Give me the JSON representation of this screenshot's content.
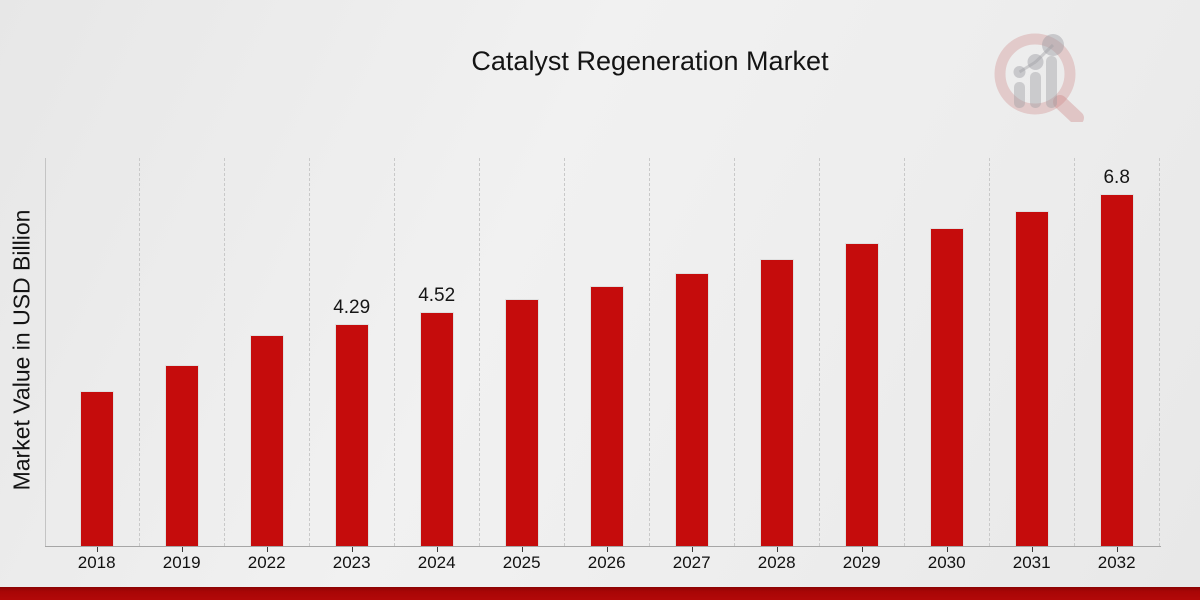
{
  "title": "Catalyst Regeneration Market",
  "y_axis_label": "Market Value in USD Billion",
  "colors": {
    "bar": "#c50c0c",
    "bottom_strip": "#a80606",
    "gridline": "#c9c9c9",
    "axis_line": "#a6a6a6",
    "text": "#141414"
  },
  "watermark": {
    "icon": "magnifier-bar-chart-logo"
  },
  "chart_data": {
    "type": "bar",
    "title": "Catalyst Regeneration Market",
    "xlabel": "",
    "ylabel": "Market Value in USD Billion",
    "categories": [
      "2018",
      "2019",
      "2022",
      "2023",
      "2024",
      "2025",
      "2026",
      "2027",
      "2028",
      "2029",
      "2030",
      "2031",
      "2032"
    ],
    "values": [
      3.0,
      3.5,
      4.08,
      4.29,
      4.52,
      4.76,
      5.01,
      5.27,
      5.55,
      5.84,
      6.14,
      6.46,
      6.8
    ],
    "data_labels": {
      "2023": "4.29",
      "2024": "4.52",
      "2032": "6.8"
    },
    "series_name": "Market Value in USD Billion",
    "ylim": [
      0,
      7.5
    ],
    "grid": "vertical-only",
    "legend": "none",
    "bar_color": "#c50c0c"
  }
}
